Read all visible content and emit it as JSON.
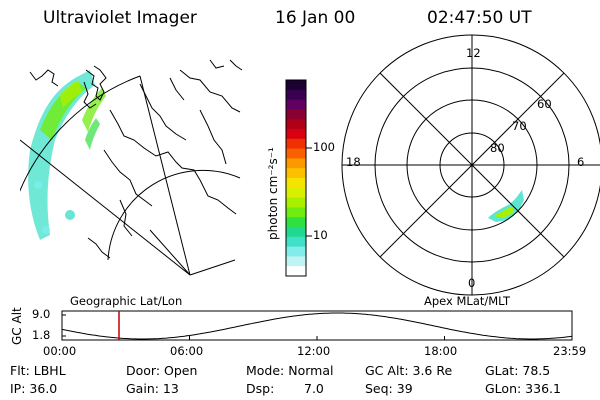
{
  "header": {
    "title": "Ultraviolet Imager",
    "date": "16 Jan 00",
    "time": "02:47:50 UT"
  },
  "colorbar": {
    "label": "photon cm⁻²s⁻¹",
    "ticks": [
      "100",
      "10"
    ],
    "colors": [
      "#1a0033",
      "#3a0050",
      "#600060",
      "#8a0030",
      "#b00018",
      "#d80010",
      "#f03000",
      "#f86000",
      "#fc9800",
      "#fcc000",
      "#f4e400",
      "#d8f000",
      "#a8f000",
      "#70ec10",
      "#30e040",
      "#20d890",
      "#40e0c8",
      "#80ecec",
      "#c0f4f4",
      "#ffffff"
    ]
  },
  "left_panel": {
    "caption": "Geographic Lat/Lon"
  },
  "right_panel": {
    "caption": "Apex MLat/MLT",
    "mlt_labels": [
      "12",
      "18",
      "6",
      "0"
    ],
    "lat_labels": [
      "60",
      "70",
      "80"
    ]
  },
  "timeline": {
    "axis_title": "GC Alt",
    "y_top": "9.0",
    "y_bottom": "1.8",
    "ticks": [
      "00:00",
      "06:00",
      "12:00",
      "18:00",
      "23:59"
    ]
  },
  "info": {
    "flt": "Flt: LBHL",
    "ip": "IP: 36.0",
    "door": "Door: Open",
    "gain": "Gain: 13",
    "mode": "Mode: Normal",
    "dsp_label": "Dsp:",
    "dsp_value": "7.0",
    "gc_alt": "GC Alt: 3.6 Re",
    "seq": "Seq: 39",
    "glat": "GLat: 78.5",
    "glon": "GLon: 336.1"
  }
}
